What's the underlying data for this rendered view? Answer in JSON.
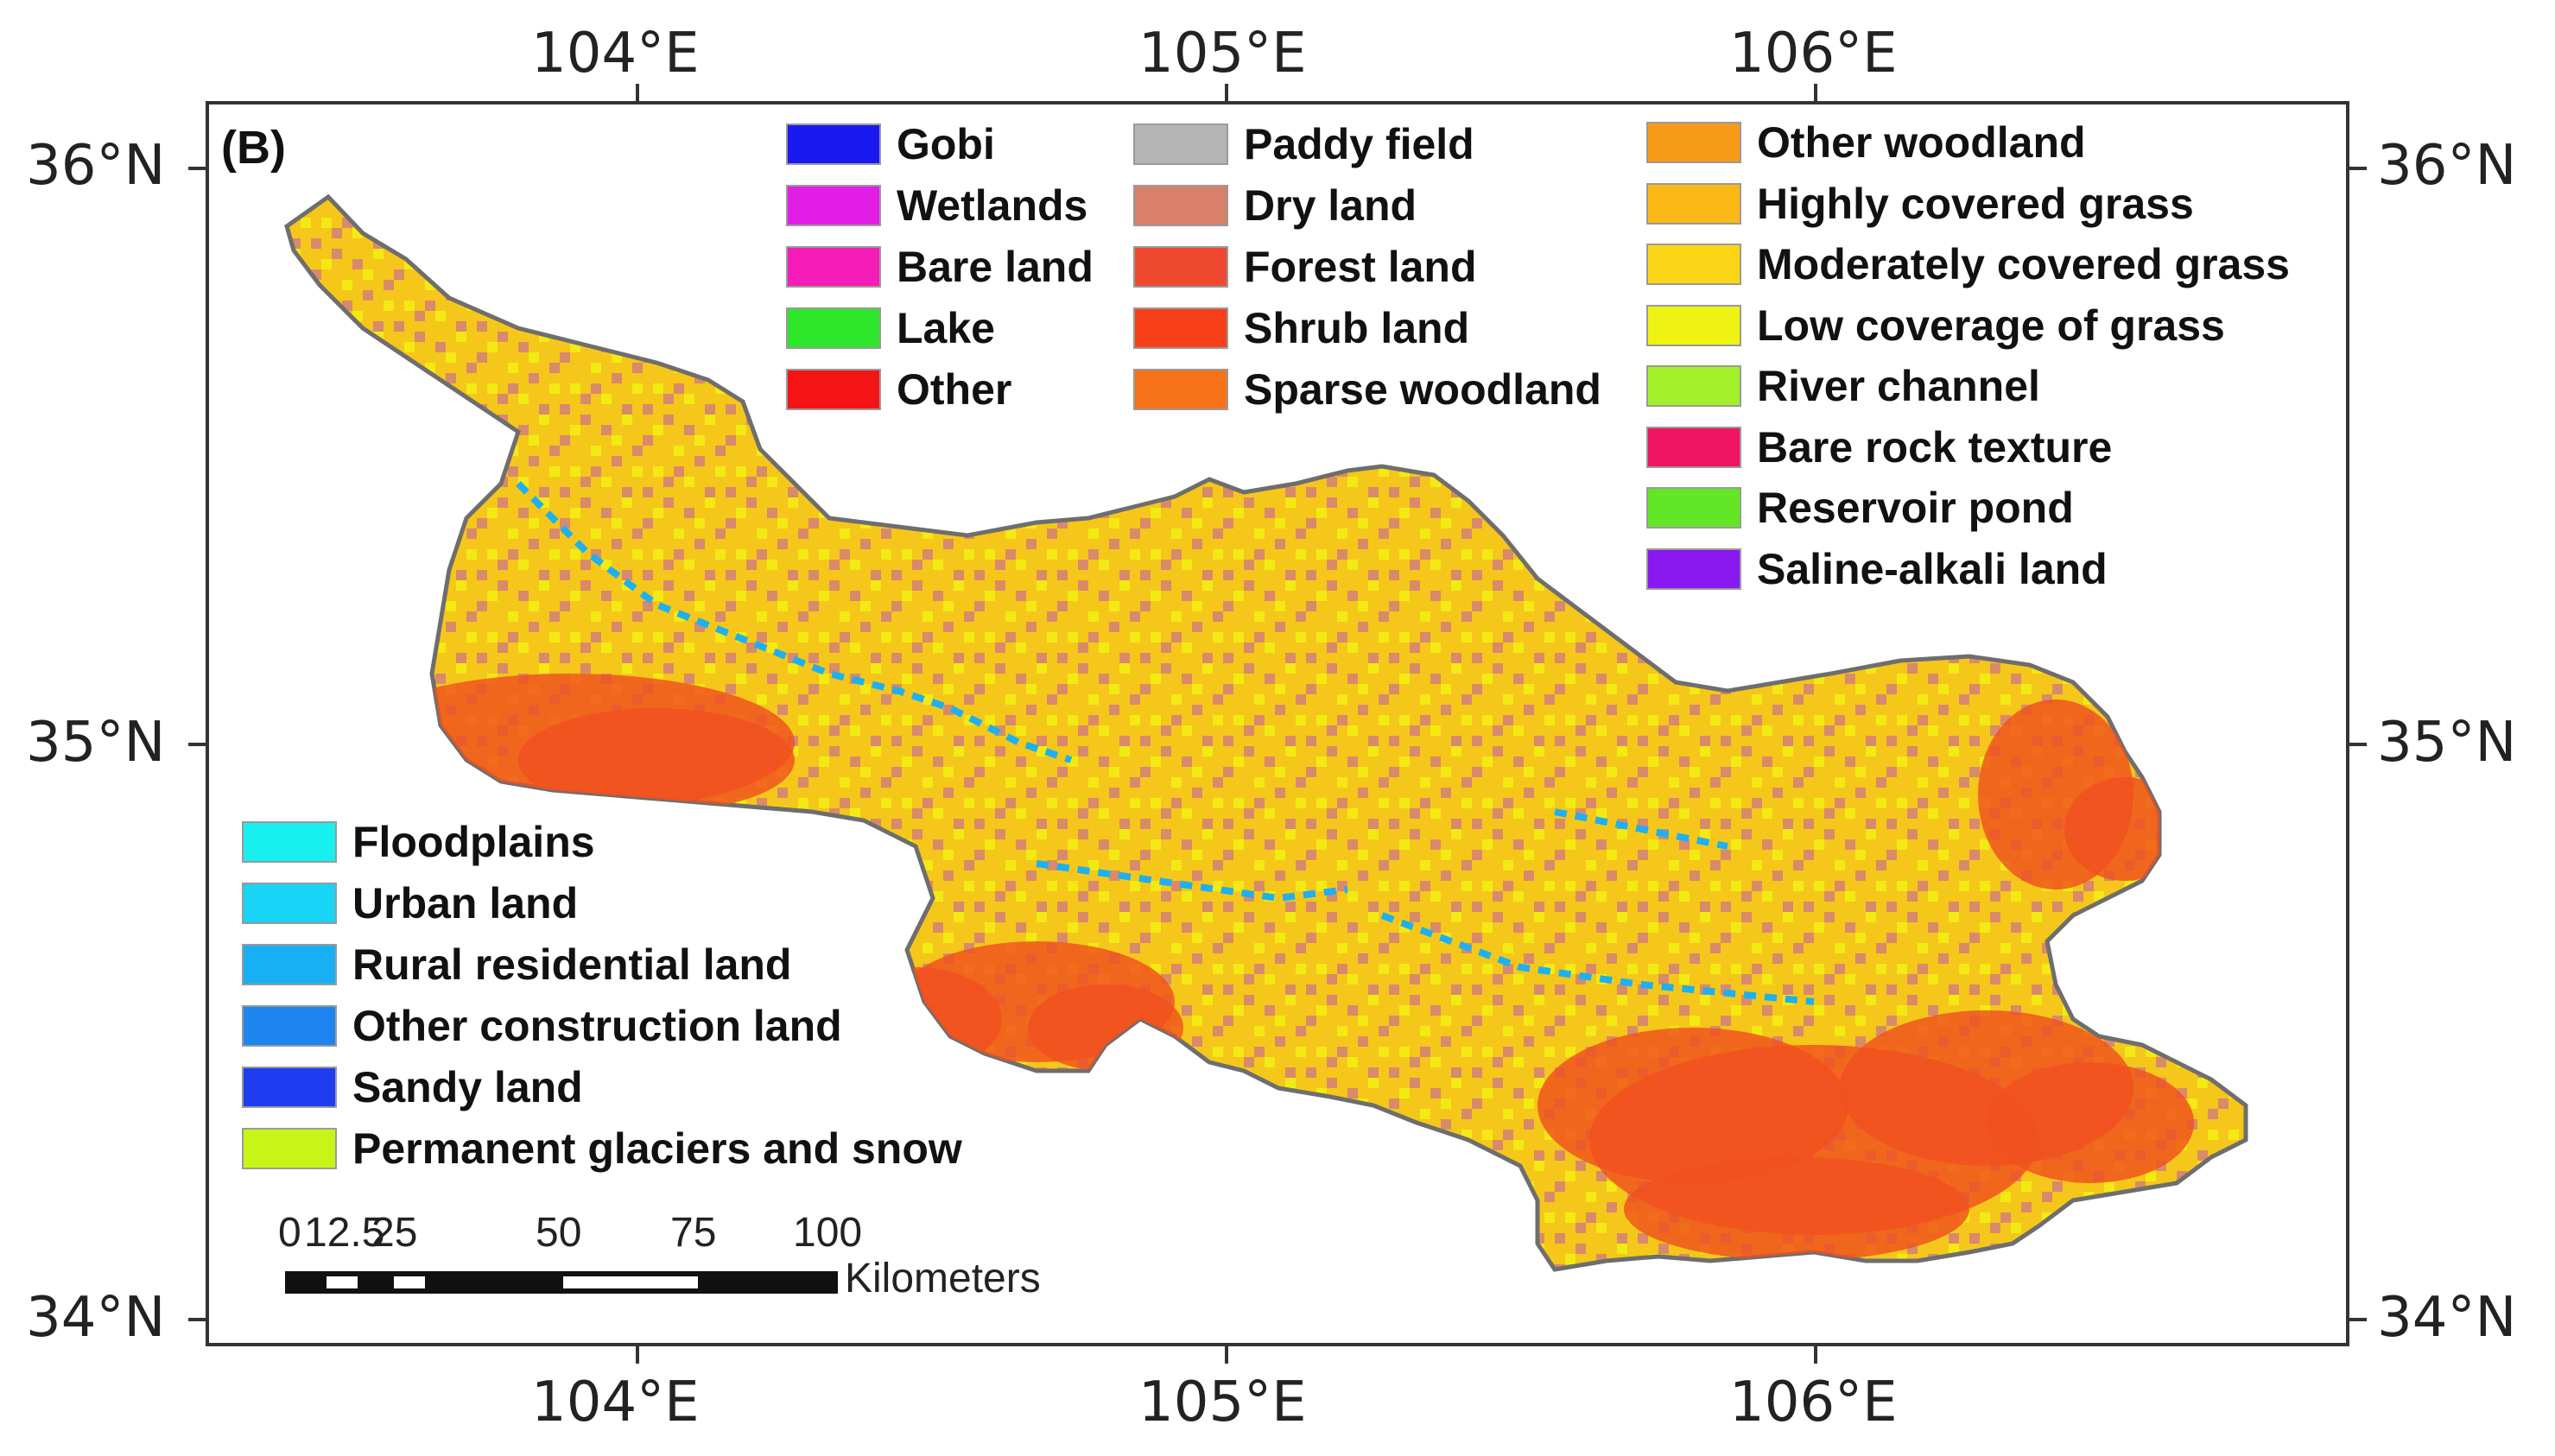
{
  "panel_label": "(B)",
  "axes": {
    "top_lon": [
      "104°E",
      "105°E",
      "106°E"
    ],
    "bottom_lon": [
      "104°E",
      "105°E",
      "106°E"
    ],
    "left_lat": [
      "36°N",
      "35°N",
      "34°N"
    ],
    "right_lat": [
      "36°N",
      "35°N",
      "34°N"
    ]
  },
  "legend_top": {
    "col1": [
      {
        "label": "Gobi",
        "color": "#1a1af0"
      },
      {
        "label": "Wetlands",
        "color": "#e21ee6"
      },
      {
        "label": "Bare land",
        "color": "#f51cb8"
      },
      {
        "label": "Lake",
        "color": "#2ee62a"
      },
      {
        "label": "Other",
        "color": "#f51414"
      }
    ],
    "col2": [
      {
        "label": "Paddy field",
        "color": "#b4b4b4"
      },
      {
        "label": "Dry land",
        "color": "#d98068"
      },
      {
        "label": "Forest land",
        "color": "#ef4a30"
      },
      {
        "label": "Shrub land",
        "color": "#f7401a"
      },
      {
        "label": "Sparse woodland",
        "color": "#f7731a"
      }
    ],
    "col3": [
      {
        "label": "Other woodland",
        "color": "#f79a1a"
      },
      {
        "label": "Highly covered grass",
        "color": "#fbb816"
      },
      {
        "label": "Moderately covered grass",
        "color": "#fbd616"
      },
      {
        "label": "Low coverage of grass",
        "color": "#eef314"
      },
      {
        "label": "River channel",
        "color": "#a3f02a"
      },
      {
        "label": "Bare rock texture",
        "color": "#f01462"
      },
      {
        "label": "Reservoir pond",
        "color": "#62e626"
      },
      {
        "label": "Saline-alkali land",
        "color": "#8a18f0"
      }
    ]
  },
  "legend_bottom": [
    {
      "label": "Floodplains",
      "color": "#18f0f0"
    },
    {
      "label": "Urban land",
      "color": "#18d4f5"
    },
    {
      "label": "Rural residential land",
      "color": "#18b0f5"
    },
    {
      "label": "Other construction land",
      "color": "#1e85f0"
    },
    {
      "label": "Sandy land",
      "color": "#1e3cf0"
    },
    {
      "label": "Permanent glaciers and snow",
      "color": "#c8f516"
    }
  ],
  "scale_bar": {
    "ticks": [
      "0",
      "12.5",
      "25",
      "50",
      "75",
      "100"
    ],
    "unit": "Kilometers"
  },
  "map_colors": {
    "base": "#f5c71a",
    "dryland": "#d98a6a",
    "yellow": "#f3ea14",
    "forest": "#f0501e",
    "water": "#1eb0f0",
    "outline": "#6e6e6e"
  }
}
